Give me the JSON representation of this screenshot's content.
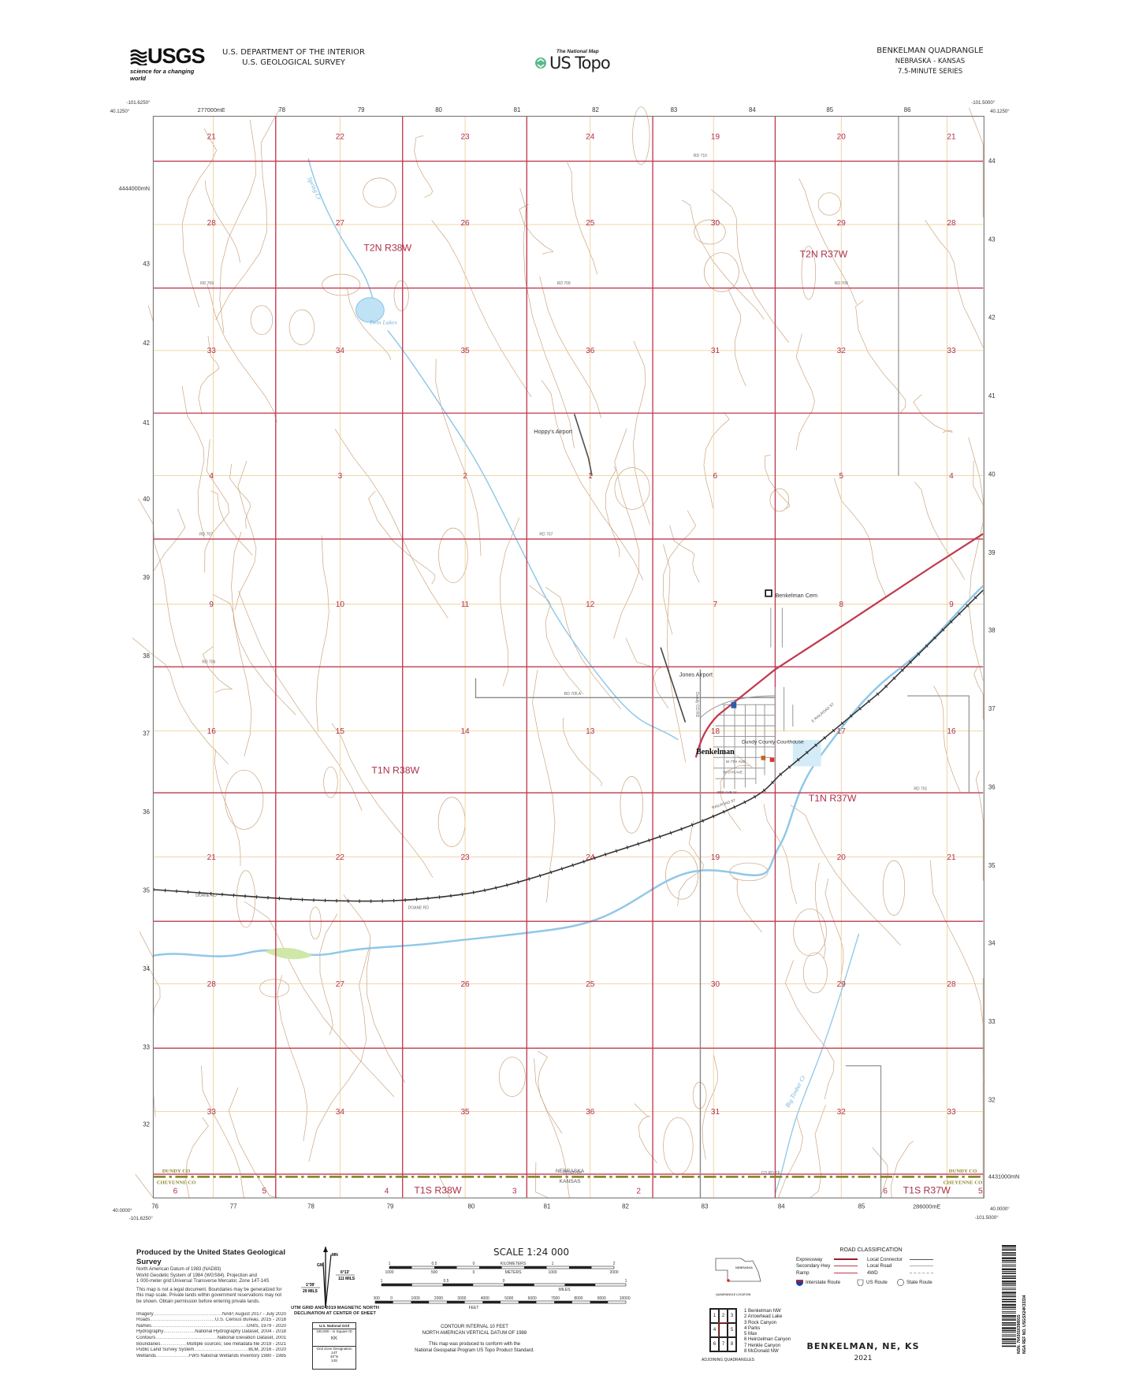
{
  "header": {
    "agency_logo": "USGS",
    "agency_tagline": "science for a changing world",
    "department": "U.S. DEPARTMENT OF THE INTERIOR",
    "survey": "U.S. GEOLOGICAL SURVEY",
    "product_tagline": "The National Map",
    "product_name": "US Topo",
    "quad_title": "BENKELMAN QUADRANGLE",
    "quad_states": "NEBRASKA - KANSAS",
    "quad_series": "7.5-MINUTE SERIES"
  },
  "colors": {
    "section_line": "#c0394f",
    "township_label": "#b0304a",
    "contour": "#c9a27c",
    "water": "#8fc8e8",
    "road": "#8a8a8a",
    "quarter_line": "#ecc98d",
    "county_boundary": "#8a8a2e"
  },
  "map_edges": {
    "nw_lon": "-101.6250°",
    "nw_lat": "40.1250°",
    "ne_lon": "-101.5000°",
    "ne_lat": "40.1250°",
    "sw_lon": "-101.6250°",
    "sw_lat": "40.0000°",
    "se_lon": "-101.5000°",
    "se_lat": "40.0000°",
    "top_eastings": [
      "277000mE",
      "78",
      "79",
      "80",
      "81",
      "82",
      "83",
      "84",
      "85",
      "86"
    ],
    "bottom_eastings": [
      "76",
      "77",
      "78",
      "79",
      "80",
      "81",
      "82",
      "83",
      "84",
      "85",
      "286000mE"
    ],
    "left_northings": [
      "4444000mN",
      "43",
      "42",
      "41",
      "40",
      "39",
      "38",
      "37",
      "36",
      "35",
      "34",
      "33",
      "32"
    ],
    "right_northings": [
      "44",
      "43",
      "42",
      "41",
      "40",
      "39",
      "38",
      "37",
      "36",
      "35",
      "34",
      "33",
      "32",
      "4431000mN"
    ]
  },
  "sections": [
    [
      "21",
      "22",
      "23",
      "24",
      "19",
      "20",
      "21"
    ],
    [
      "28",
      "27",
      "26",
      "25",
      "30",
      "29",
      "28"
    ],
    [
      "33",
      "34",
      "35",
      "36",
      "31",
      "32",
      "33"
    ],
    [
      "4",
      "3",
      "2",
      "1",
      "6",
      "5",
      "4"
    ],
    [
      "9",
      "10",
      "11",
      "12",
      "7",
      "8",
      "9"
    ],
    [
      "16",
      "15",
      "14",
      "13",
      "18",
      "17",
      "16"
    ],
    [
      "21",
      "22",
      "23",
      "24",
      "19",
      "20",
      "21"
    ],
    [
      "28",
      "27",
      "26",
      "25",
      "30",
      "29",
      "28"
    ],
    [
      "33",
      "34",
      "35",
      "36",
      "31",
      "32",
      "33"
    ],
    [
      "6",
      "5",
      "4",
      "3",
      "2",
      "6",
      "5"
    ]
  ],
  "townships": [
    "T2N R38W",
    "T2N R37W",
    "T1N R38W",
    "T1N R37W",
    "T1S R38W",
    "T1S R37W"
  ],
  "places": {
    "town": "Benkelman",
    "courthouse": "Dundy County Courthouse",
    "cemetery": "Benkelman Cem",
    "airport_1": "Hoppy's Airport",
    "airport_2": "Jones Airport",
    "lake": "Twin Lakes",
    "creek_1": "Spring Cr",
    "creek_2": "Big Timber Cr",
    "county_n": "DUNDY CO",
    "county_s": "CHEYENNE CO",
    "state_n": "NEBRASKA",
    "state_s": "KANSAS"
  },
  "roads": {
    "rd710": "RD 710",
    "rd709": "RD 709",
    "rd707": "RD 707",
    "rd706": "RD 706",
    "rd705a": "RD 705 A",
    "rd701": "RD 701",
    "doane": "DOANE RD",
    "coee": "CO RD EE",
    "dundy": "Dundy CO RD",
    "w7": "W 7TH AVE",
    "w6": "W 6TH AVE",
    "ave3": "3RD AVE W",
    "railroad": "RAILROAD ST",
    "erailroad": "E RAILROAD ST"
  },
  "footer": {
    "producer": "Produced by the United States Geological Survey",
    "datum_lines": [
      "North American Datum of 1983 (NAD83)",
      "World Geodetic System of 1984 (WGS84). Projection and",
      "1 000-meter grid:Universal Transverse Mercator, Zone 14T-14S"
    ],
    "legal": "This map is not a legal document. Boundaries may be generalized for this map scale. Private lands within government reservations may not be shown. Obtain permission before entering private lands.",
    "credits": [
      {
        "k": "Imagery",
        "v": "NAIP, August 2017 - July 2020"
      },
      {
        "k": "Roads",
        "v": "U.S. Census Bureau, 2015 - 2018"
      },
      {
        "k": "Names",
        "v": "GNIS, 1979 - 2020"
      },
      {
        "k": "Hydrography",
        "v": "National Hydrography Dataset, 2004 - 2018"
      },
      {
        "k": "Contours",
        "v": "National Elevation Dataset, 2001"
      },
      {
        "k": "Boundaries",
        "v": "Multiple sources; see metadata file 2019 - 2021"
      },
      {
        "k": "Public Land Survey System",
        "v": "BLM, 2016 - 2020"
      },
      {
        "k": "Wetlands",
        "v": "FWS National Wetlands Inventory 1980 - 1985"
      }
    ],
    "declination": {
      "mn": "MN",
      "gn": "GN",
      "mn_angle": "6°13'",
      "mn_mils": "111 MILS",
      "gn_angle": "1°39'",
      "gn_mils": "29 MILS",
      "caption_1": "UTM GRID AND 2019 MAGNETIC NORTH",
      "caption_2": "DECLINATION AT CENTER OF SHEET"
    },
    "national_grid": {
      "title": "U.S. National Grid",
      "square_label": "100,000 - m Square ID",
      "square_id": "KK",
      "zone_label": "Grid Zone Designation",
      "zone_1": "14T",
      "zone_2": "14S",
      "lat": "40°N"
    },
    "scale": {
      "title": "SCALE 1:24 000",
      "km_ticks": [
        "1",
        "0.5",
        "0",
        "1",
        "2"
      ],
      "km_label": "KILOMETERS",
      "m_ticks": [
        "1000",
        "500",
        "0",
        "1000",
        "2000"
      ],
      "m_label": "METERS",
      "mi_ticks": [
        "1",
        "0.5",
        "0",
        "1"
      ],
      "mi_label": "MILES",
      "ft_ticks": [
        "1000",
        "0",
        "1000",
        "2000",
        "3000",
        "4000",
        "5000",
        "6000",
        "7000",
        "8000",
        "9000",
        "10000"
      ],
      "ft_label": "FEET"
    },
    "contour_note_1": "CONTOUR INTERVAL 10 FEET",
    "contour_note_2": "NORTH AMERICAN VERTICAL DATUM OF 1988",
    "standard_note_1": "This map was produced to conform with the",
    "standard_note_2": "National Geospatial Program US Topo Product Standard.",
    "location_state": "NEBRASKA",
    "location_caption": "QUADRANGLE LOCATION",
    "adjoining_cells": [
      "1",
      "2",
      "3",
      "4",
      "",
      "5",
      "6",
      "7",
      "8"
    ],
    "adjoining_list": [
      "1 Benkelman NW",
      "2 Arrowhead Lake",
      "3 Rock Canyon",
      "4 Parks",
      "5 Max",
      "6 Heinzelman Canyon",
      "7 Henkle Canyon",
      "8 McDonald NW"
    ],
    "adjoining_caption": "ADJOINING QUADRANGLES",
    "road_legend": {
      "title": "ROAD CLASSIFICATION",
      "expressway": "Expressway",
      "secondary": "Secondary Hwy",
      "ramp": "Ramp",
      "local_connector": "Local Connector",
      "local_road": "Local Road",
      "fwd": "4WD",
      "interstate": "Interstate Route",
      "us_route": "US Route",
      "state_route": "State Route"
    },
    "sheet_name": "BENKELMAN, NE, KS",
    "year": "2021",
    "barcode_nsn": "NSN. 7643016398915",
    "barcode_nga": "NGA REF NO. USGSX24K33334"
  }
}
